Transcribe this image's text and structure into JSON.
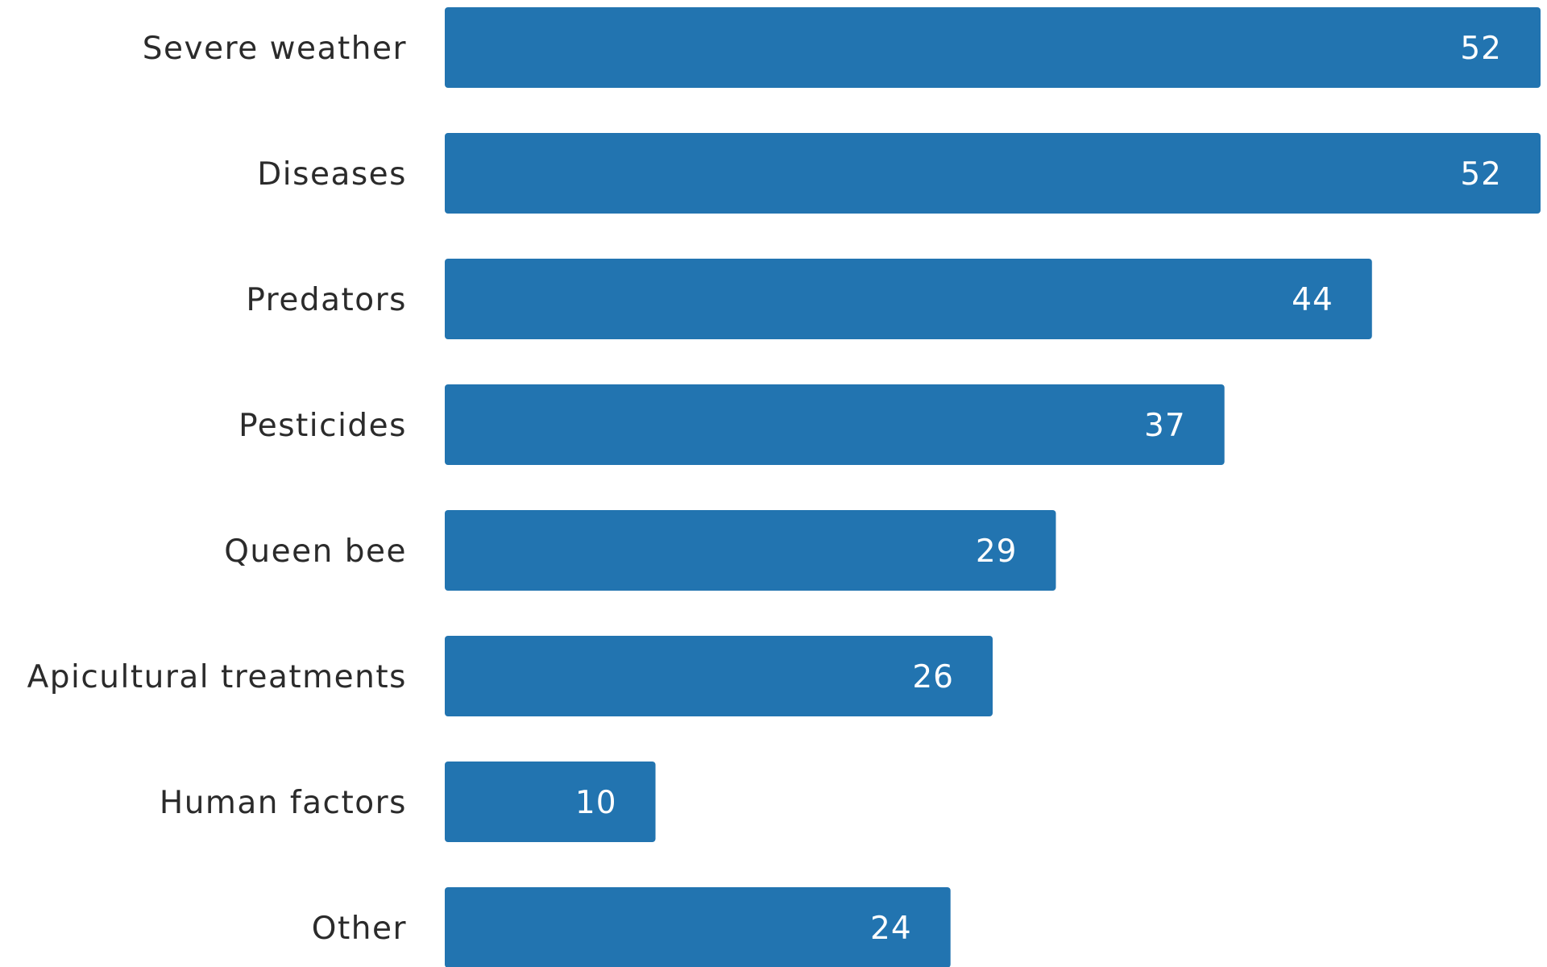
{
  "chart_data": {
    "type": "bar",
    "orientation": "horizontal",
    "title": "",
    "xlabel": "",
    "ylabel": "",
    "categories": [
      "Severe weather",
      "Diseases",
      "Predators",
      "Pesticides",
      "Queen bee",
      "Apicultural treatments",
      "Human factors",
      "Other"
    ],
    "values": [
      52,
      52,
      44,
      37,
      29,
      26,
      10,
      24
    ],
    "xlim": [
      0,
      52
    ],
    "grid": false,
    "data_labels": true,
    "bar_color": "#2274b0"
  }
}
